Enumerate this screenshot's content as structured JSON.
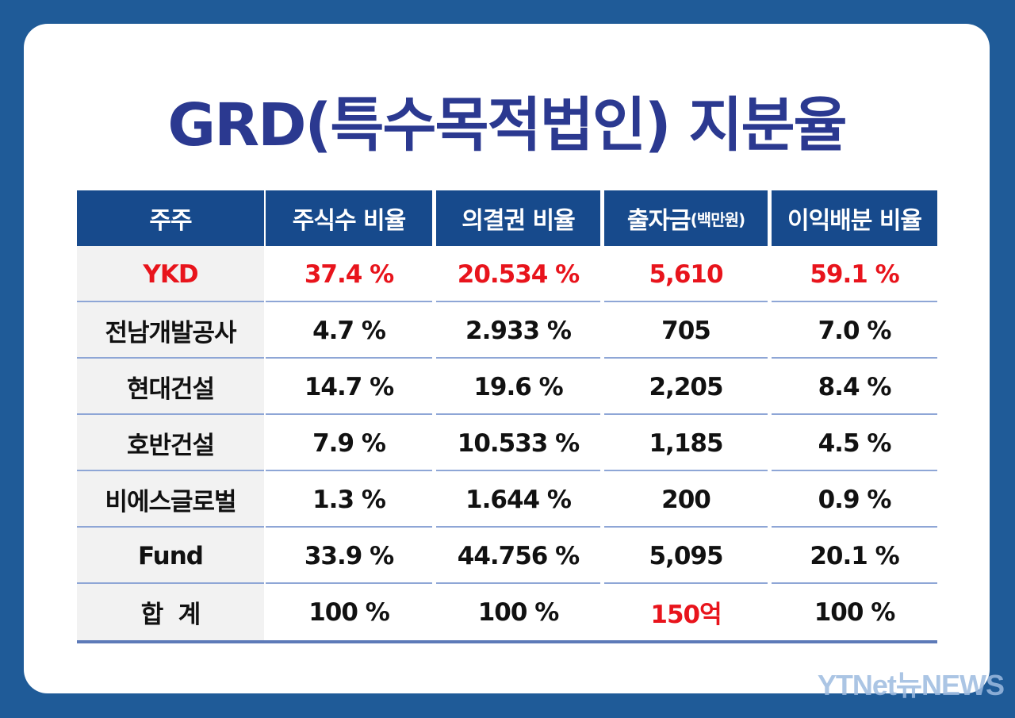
{
  "title": "GRD(특수목적법인) 지분율",
  "table": {
    "headers": [
      "주주",
      "주식수 비율",
      "의결권 비율",
      "출자금",
      "이익배분 비율"
    ],
    "header_unit": "(백만원)",
    "rows": [
      {
        "shareholder": "YKD",
        "share_ratio": "37.4 %",
        "voting_ratio": "20.534 %",
        "investment": "5,610",
        "profit_ratio": "59.1 %",
        "highlight": true
      },
      {
        "shareholder": "전남개발공사",
        "share_ratio": "4.7 %",
        "voting_ratio": "2.933 %",
        "investment": "705",
        "profit_ratio": "7.0 %"
      },
      {
        "shareholder": "현대건설",
        "share_ratio": "14.7 %",
        "voting_ratio": "19.6 %",
        "investment": "2,205",
        "profit_ratio": "8.4 %"
      },
      {
        "shareholder": "호반건설",
        "share_ratio": "7.9 %",
        "voting_ratio": "10.533 %",
        "investment": "1,185",
        "profit_ratio": "4.5 %"
      },
      {
        "shareholder": "비에스글로벌",
        "share_ratio": "1.3 %",
        "voting_ratio": "1.644 %",
        "investment": "200",
        "profit_ratio": "0.9 %"
      },
      {
        "shareholder": "Fund",
        "share_ratio": "33.9 %",
        "voting_ratio": "44.756 %",
        "investment": "5,095",
        "profit_ratio": "20.1 %"
      },
      {
        "shareholder": "합  계",
        "share_ratio": "100 %",
        "voting_ratio": "100 %",
        "investment": "150억",
        "profit_ratio": "100 %"
      }
    ]
  },
  "colors": {
    "background": "#1f5b98",
    "title": "#2b3990",
    "header": "#174a8c",
    "highlight": "#e8141c",
    "row_divider": "#8ea6d6"
  },
  "watermark": "YTNet뉴NEWS"
}
